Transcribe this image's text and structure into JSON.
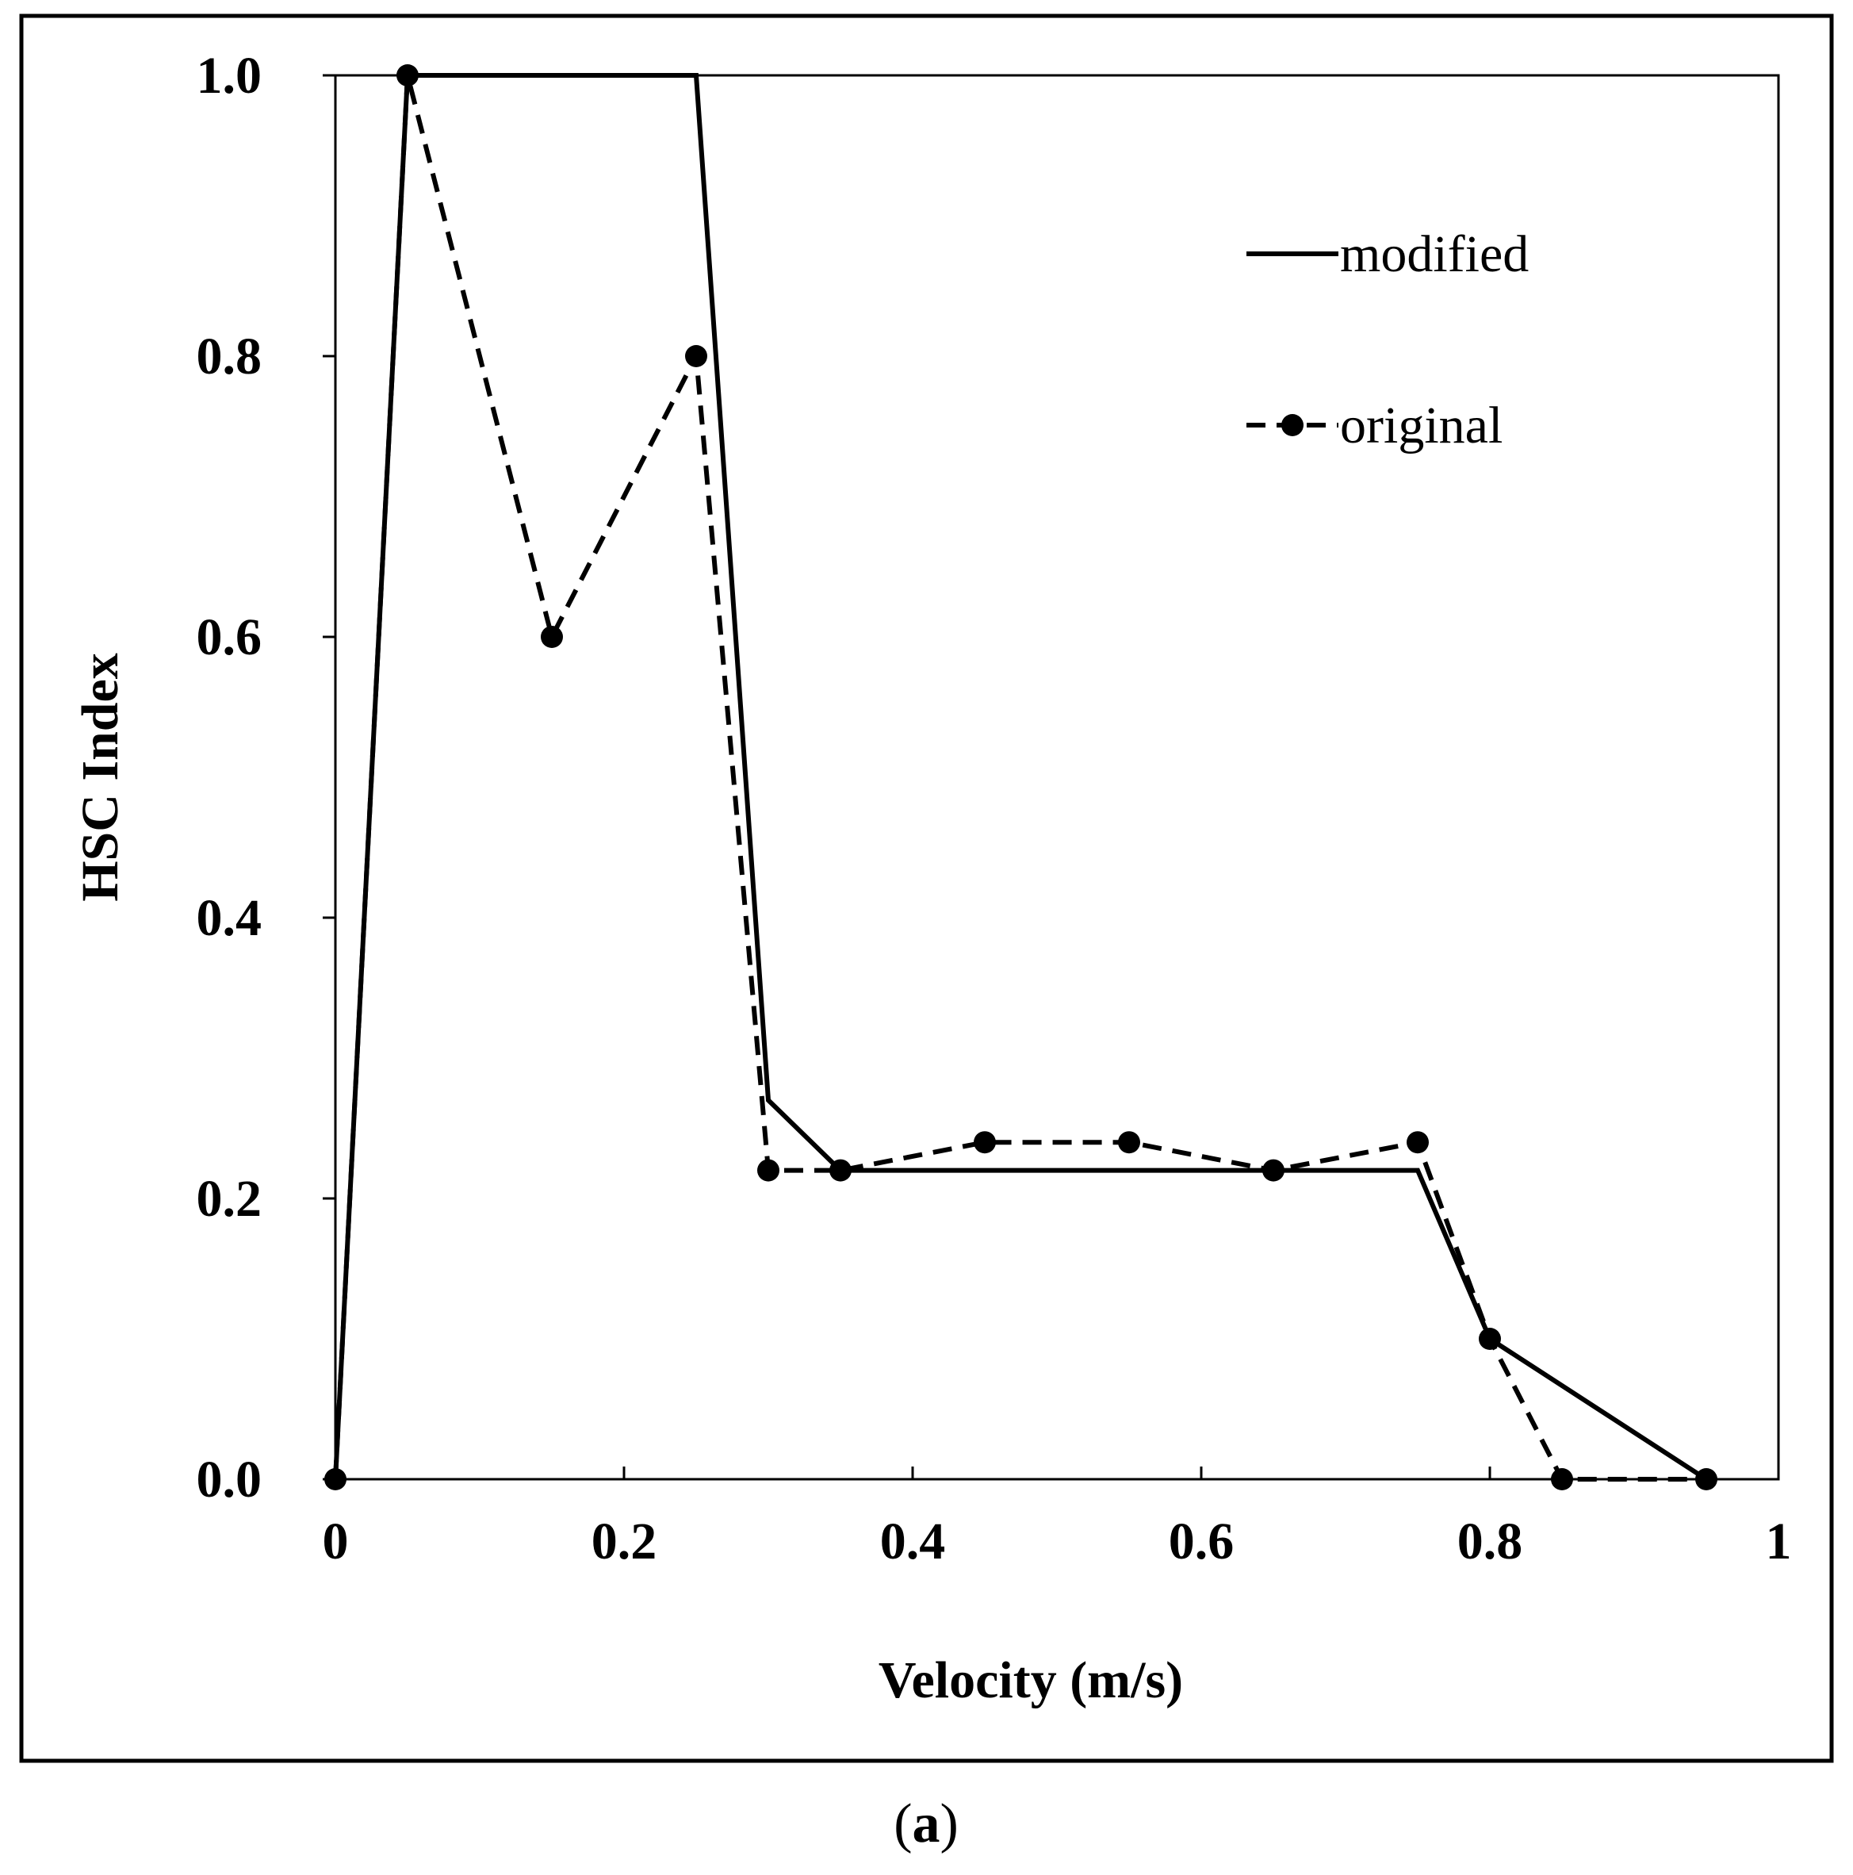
{
  "chart_data": {
    "type": "line",
    "title": "",
    "xlabel": "Velocity (m/s)",
    "ylabel": "HSC Index",
    "xlim": [
      0,
      1
    ],
    "ylim": [
      0,
      1
    ],
    "x_ticks": [
      0,
      0.2,
      0.4,
      0.6,
      0.8,
      1
    ],
    "x_tick_labels": [
      "0",
      "0.2",
      "0.4",
      "0.6",
      "0.8",
      "1"
    ],
    "y_ticks": [
      0,
      0.2,
      0.4,
      0.6,
      0.8,
      1.0
    ],
    "y_tick_labels": [
      "0.0",
      "0.2",
      "0.4",
      "0.6",
      "0.8",
      "1.0"
    ],
    "grid": false,
    "legend_position": "top-right",
    "series": [
      {
        "name": "modified",
        "style": "solid",
        "markers": false,
        "color": "#000000",
        "x": [
          0,
          0.05,
          0.25,
          0.3,
          0.35,
          0.75,
          0.8,
          0.95
        ],
        "y": [
          0,
          1.0,
          1.0,
          0.27,
          0.22,
          0.22,
          0.1,
          0
        ]
      },
      {
        "name": "original",
        "style": "dashed",
        "markers": true,
        "color": "#000000",
        "x": [
          0,
          0.05,
          0.15,
          0.25,
          0.3,
          0.35,
          0.45,
          0.55,
          0.65,
          0.75,
          0.8,
          0.85,
          0.95
        ],
        "y": [
          0,
          1.0,
          0.6,
          0.8,
          0.22,
          0.22,
          0.24,
          0.24,
          0.22,
          0.24,
          0.1,
          0,
          0
        ]
      }
    ]
  },
  "caption": {
    "open": "(",
    "letter": "a",
    "close": ")"
  }
}
